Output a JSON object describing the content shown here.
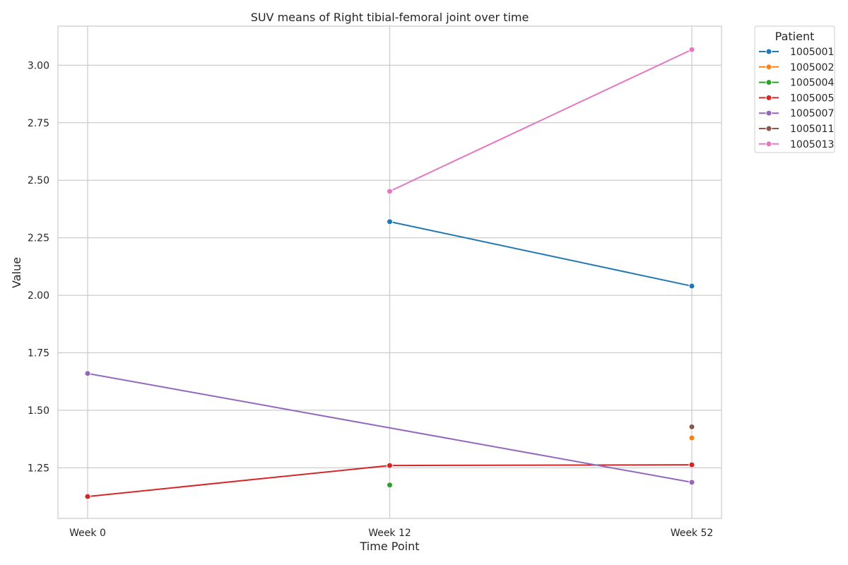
{
  "chart_data": {
    "type": "line",
    "title": "SUV means of Right tibial-femoral joint over time",
    "xlabel": "Time Point",
    "ylabel": "Value",
    "categories": [
      "Week 0",
      "Week 12",
      "Week 52"
    ],
    "ylim": [
      1.03,
      3.17
    ],
    "yticks": [
      1.25,
      1.5,
      1.75,
      2.0,
      2.25,
      2.5,
      2.75,
      3.0
    ],
    "ytick_labels": [
      "1.25",
      "1.50",
      "1.75",
      "2.00",
      "2.25",
      "2.50",
      "2.75",
      "3.00"
    ],
    "grid": true,
    "legend": {
      "title": "Patient",
      "placement": "outside-top-right"
    },
    "series": [
      {
        "name": "1005001",
        "color": "#1f77b4",
        "values": [
          null,
          2.32,
          2.04
        ]
      },
      {
        "name": "1005002",
        "color": "#ff7f0e",
        "values": [
          null,
          null,
          1.38
        ]
      },
      {
        "name": "1005004",
        "color": "#2ca02c",
        "values": [
          null,
          1.175,
          null
        ]
      },
      {
        "name": "1005005",
        "color": "#d62728",
        "values": [
          1.125,
          1.26,
          1.263
        ]
      },
      {
        "name": "1005007",
        "color": "#9467bd",
        "values": [
          1.66,
          null,
          1.187
        ]
      },
      {
        "name": "1005011",
        "color": "#8c564b",
        "values": [
          null,
          null,
          1.428
        ]
      },
      {
        "name": "1005013",
        "color": "#e377c2",
        "values": [
          null,
          2.452,
          3.068
        ]
      }
    ]
  }
}
